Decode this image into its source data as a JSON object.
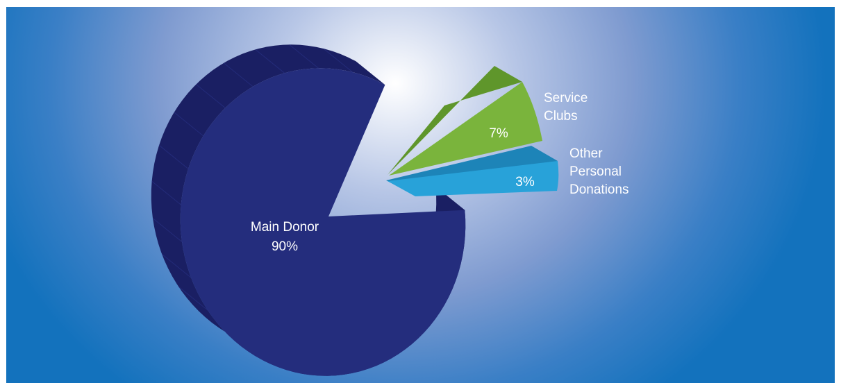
{
  "chart_data": {
    "type": "pie",
    "categories": [
      "Main Donor",
      "Service Clubs",
      "Other Personal Donations"
    ],
    "values": [
      90,
      7,
      3
    ],
    "value_labels": [
      "90%",
      "7%",
      "3%"
    ],
    "label_lines": [
      [
        "Main Donor"
      ],
      [
        "Service",
        "Clubs"
      ],
      [
        "Other",
        "Personal",
        "Donations"
      ]
    ],
    "colors": [
      "#242d7d",
      "#7ab43c",
      "#28a2d9"
    ],
    "side_colors": [
      "#1a1f63",
      "#5f962b",
      "#1d84b8"
    ],
    "exploded": true,
    "style": "3d"
  }
}
